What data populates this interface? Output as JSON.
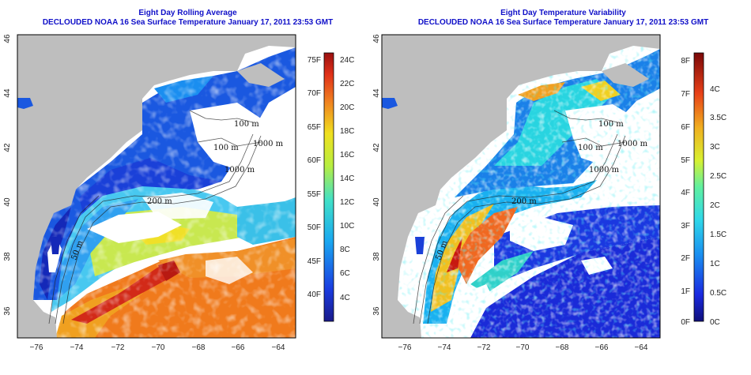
{
  "colors": {
    "land": "#bebebe",
    "frame": "#000000",
    "title": "#1010c8"
  },
  "panels": [
    {
      "title": "Eight Day Rolling Average",
      "subtitle": "DECLOUDED NOAA 16 Sea Surface Temperature January 17, 2011 23:53 GMT",
      "x_ticks": [
        "−76",
        "−74",
        "−72",
        "−70",
        "−68",
        "−66",
        "−64"
      ],
      "y_ticks": [
        "36",
        "38",
        "40",
        "42",
        "44",
        "46"
      ],
      "contours": [
        "100 m",
        "1000 m",
        "100 m",
        "1000 m",
        "200 m",
        "50 m"
      ],
      "colorbar_left": [
        "75F",
        "70F",
        "65F",
        "60F",
        "55F",
        "50F",
        "45F",
        "40F"
      ],
      "colorbar_right": [
        "24C",
        "22C",
        "20C",
        "18C",
        "16C",
        "14C",
        "12C",
        "10C",
        "8C",
        "6C",
        "4C"
      ]
    },
    {
      "title": "Eight Day Temperature Variability",
      "subtitle": "DECLOUDED NOAA 16 Sea Surface Temperature January 17, 2011 23:53 GMT",
      "x_ticks": [
        "−76",
        "−74",
        "−72",
        "−70",
        "−68",
        "−66",
        "−64"
      ],
      "y_ticks": [
        "36",
        "38",
        "40",
        "42",
        "44",
        "46"
      ],
      "contours": [
        "100 m",
        "1000 m",
        "100 m",
        "1000 m",
        "200 m",
        "50 m"
      ],
      "colorbar_left": [
        "8F",
        "7F",
        "6F",
        "5F",
        "4F",
        "3F",
        "2F",
        "1F",
        "0F"
      ],
      "colorbar_right": [
        "4C",
        "3.5C",
        "3C",
        "2.5C",
        "2C",
        "1.5C",
        "1C",
        "0.5C",
        "0C"
      ]
    }
  ]
}
